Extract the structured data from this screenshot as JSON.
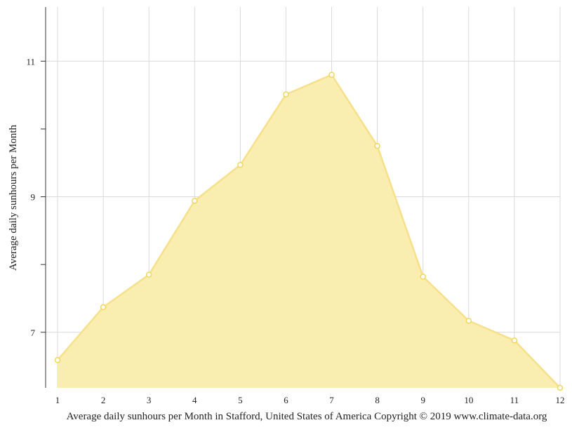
{
  "chart_data": {
    "type": "area",
    "title": "",
    "xlabel": "Average daily sunhours per Month in Stafford, United States of America Copyright © 2019 www.climate-data.org",
    "ylabel": "Average daily sunhours per Month",
    "x": [
      1,
      2,
      3,
      4,
      5,
      6,
      7,
      8,
      9,
      10,
      11,
      12
    ],
    "x_tick_labels": [
      "1",
      "2",
      "3",
      "4",
      "5",
      "6",
      "7",
      "8",
      "9",
      "10",
      "11",
      "12"
    ],
    "values": [
      6.59,
      7.37,
      7.85,
      8.94,
      9.47,
      10.51,
      10.8,
      9.75,
      7.82,
      7.17,
      6.88,
      6.18
    ],
    "y_tick_labels": [
      "7",
      "9",
      "11"
    ],
    "y_ticks": [
      7,
      9,
      11
    ],
    "y_minor_ticks": [
      8,
      10
    ],
    "ylim": [
      6.18,
      11.8
    ],
    "xlim": [
      1,
      12
    ],
    "grid": true,
    "colors": {
      "fill": "#f9edb0",
      "line": "#f7e08a",
      "point_stroke": "#f2d65a",
      "grid": "#d9d9d9"
    }
  }
}
